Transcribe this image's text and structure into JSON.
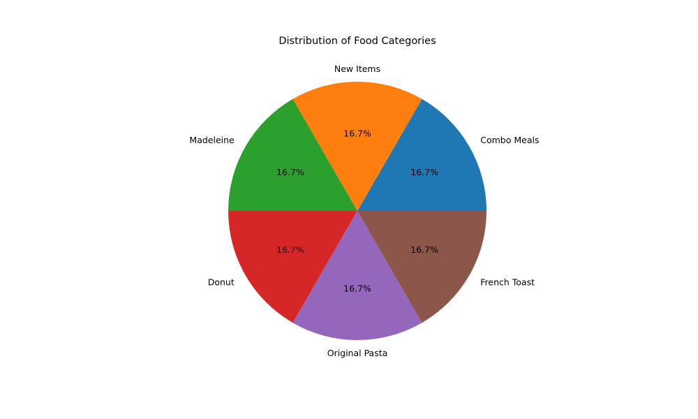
{
  "chart_data": {
    "type": "pie",
    "title": "Distribution of Food Categories",
    "categories": [
      "Combo Meals",
      "New Items",
      "Madeleine",
      "Donut",
      "Original Pasta",
      "French Toast"
    ],
    "values": [
      1,
      1,
      1,
      1,
      1,
      1
    ],
    "percent_labels": [
      "16.7%",
      "16.7%",
      "16.7%",
      "16.7%",
      "16.7%",
      "16.7%"
    ],
    "colors": [
      "#1f77b4",
      "#ff7f0e",
      "#2ca02c",
      "#d62728",
      "#9467bd",
      "#8c564b"
    ],
    "start_angle_deg": 0,
    "direction": "counterclockwise"
  }
}
